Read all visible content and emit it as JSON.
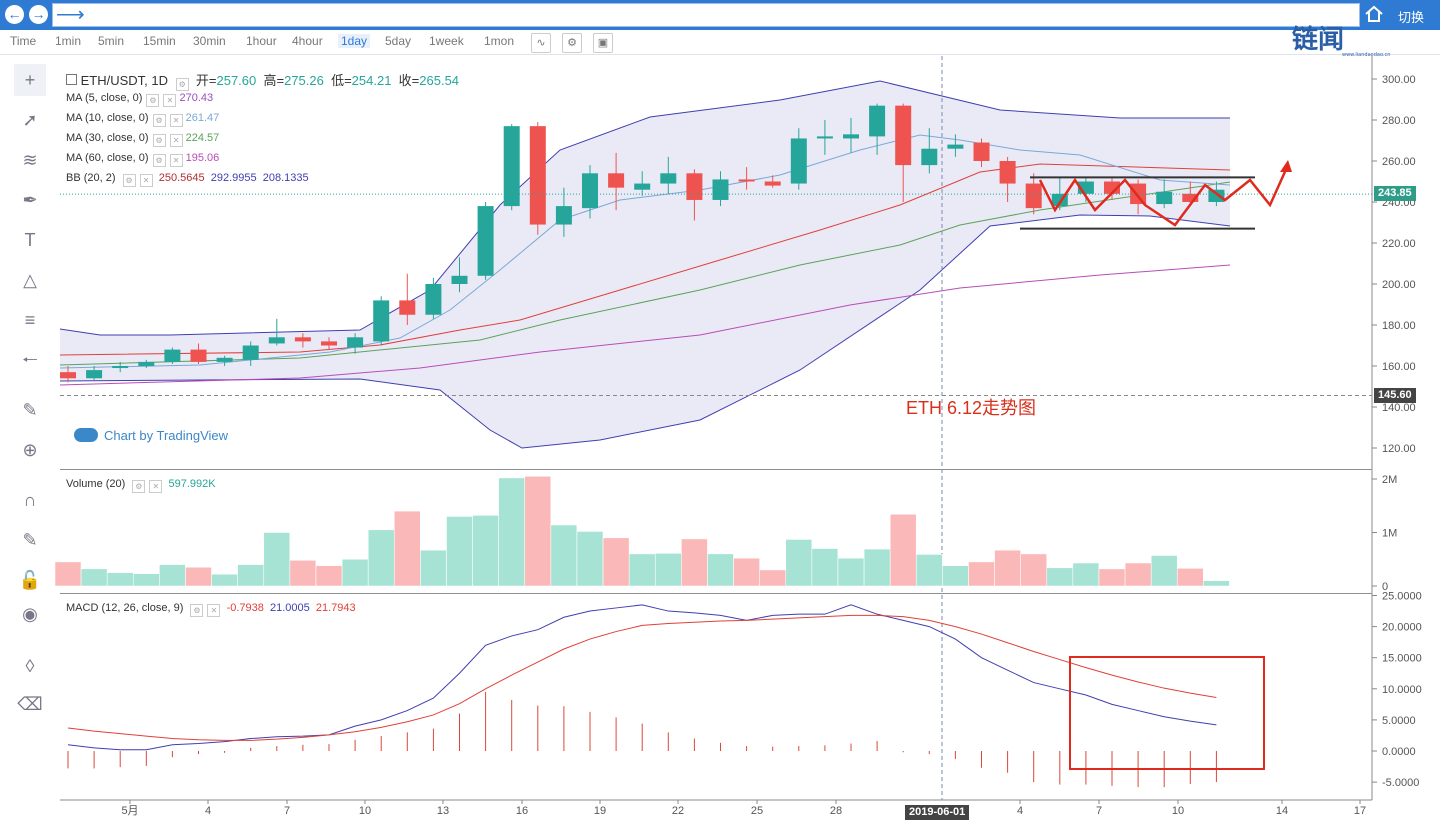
{
  "browser": {
    "back_icon": "back-arrow-icon",
    "forward_icon": "forward-arrow-icon",
    "go_icon": "go-arrow-icon",
    "home_icon": "home-icon",
    "switch_label": "切换"
  },
  "timeframes": [
    "Time",
    "1min",
    "5min",
    "15min",
    "30min",
    "1hour",
    "4hour",
    "1day",
    "5day",
    "1week",
    "1mon"
  ],
  "active_timeframe": "1day",
  "logo": {
    "text": "链闻",
    "sub": "www.liandaodao.cn"
  },
  "legend": {
    "symbol": "ETH/USDT, 1D",
    "open_label": "开=",
    "open": "257.60",
    "high_label": "高=",
    "high": "275.26",
    "low_label": "低=",
    "low": "254.21",
    "close_label": "收=",
    "close": "265.54",
    "ma": [
      {
        "label": "MA (5, close, 0)",
        "value": "270.43",
        "color": "#9b4dbf"
      },
      {
        "label": "MA (10, close, 0)",
        "value": "261.47",
        "color": "#7aa8d8"
      },
      {
        "label": "MA (30, close, 0)",
        "value": "224.57",
        "color": "#5aa35a"
      },
      {
        "label": "MA (60, close, 0)",
        "value": "195.06",
        "color": "#b84db8"
      }
    ],
    "bb": {
      "label": "BB (20, 2)",
      "v1": "250.5645",
      "v2": "292.9955",
      "v3": "208.1335"
    },
    "volume": {
      "label": "Volume (20)",
      "value": "597.992K"
    },
    "macd": {
      "label": "MACD (12, 26, close, 9)",
      "v1": "-0.7938",
      "v2": "21.0005",
      "v3": "21.7943"
    }
  },
  "watermark": "Chart by TradingView",
  "annotation": "ETH 6.12走势图",
  "price_badges": {
    "last": "243.85",
    "crosshair": "145.60"
  },
  "crosshair_date": "2019-06-01",
  "colors": {
    "up": "#26a69a",
    "down": "#ef5350",
    "bb_fill": "#d8d8ee",
    "bb_line": "#3f3fb0",
    "ma_red": "#e0403a",
    "accent": "#2f7bd3"
  },
  "chart_data": {
    "type": "candlestick",
    "xlabels": [
      "5月",
      "4",
      "7",
      "10",
      "13",
      "16",
      "19",
      "22",
      "25",
      "28",
      "2019-06-01",
      "4",
      "7",
      "10",
      "14",
      "17"
    ],
    "price_axis": {
      "ticks": [
        300.0,
        280.0,
        260.0,
        240.0,
        220.0,
        200.0,
        180.0,
        160.0,
        140.0,
        120.0
      ],
      "ylim": [
        110,
        305
      ]
    },
    "candles": [
      {
        "o": 157,
        "h": 160,
        "l": 152,
        "c": 154
      },
      {
        "o": 154,
        "h": 160,
        "l": 153,
        "c": 158
      },
      {
        "o": 159,
        "h": 162,
        "l": 157,
        "c": 160
      },
      {
        "o": 160,
        "h": 163,
        "l": 159,
        "c": 162
      },
      {
        "o": 162,
        "h": 169,
        "l": 161,
        "c": 168
      },
      {
        "o": 168,
        "h": 171,
        "l": 161,
        "c": 162
      },
      {
        "o": 162,
        "h": 165,
        "l": 160,
        "c": 164
      },
      {
        "o": 163,
        "h": 172,
        "l": 160,
        "c": 170
      },
      {
        "o": 171,
        "h": 183,
        "l": 170,
        "c": 174
      },
      {
        "o": 174,
        "h": 176,
        "l": 169,
        "c": 172
      },
      {
        "o": 172,
        "h": 174,
        "l": 168,
        "c": 170
      },
      {
        "o": 169,
        "h": 176,
        "l": 166,
        "c": 174
      },
      {
        "o": 172,
        "h": 194,
        "l": 170,
        "c": 192
      },
      {
        "o": 192,
        "h": 205,
        "l": 180,
        "c": 185
      },
      {
        "o": 185,
        "h": 203,
        "l": 183,
        "c": 200
      },
      {
        "o": 200,
        "h": 213,
        "l": 196,
        "c": 204
      },
      {
        "o": 204,
        "h": 240,
        "l": 202,
        "c": 238
      },
      {
        "o": 238,
        "h": 278,
        "l": 236,
        "c": 277
      },
      {
        "o": 277,
        "h": 279,
        "l": 224,
        "c": 229
      },
      {
        "o": 229,
        "h": 247,
        "l": 223,
        "c": 238
      },
      {
        "o": 237,
        "h": 258,
        "l": 232,
        "c": 254
      },
      {
        "o": 254,
        "h": 264,
        "l": 236,
        "c": 247
      },
      {
        "o": 246,
        "h": 255,
        "l": 243,
        "c": 249
      },
      {
        "o": 249,
        "h": 262,
        "l": 244,
        "c": 254
      },
      {
        "o": 254,
        "h": 256,
        "l": 231,
        "c": 241
      },
      {
        "o": 241,
        "h": 255,
        "l": 238,
        "c": 251
      },
      {
        "o": 251,
        "h": 257,
        "l": 246,
        "c": 250
      },
      {
        "o": 250,
        "h": 253,
        "l": 247,
        "c": 248
      },
      {
        "o": 249,
        "h": 276,
        "l": 246,
        "c": 271
      },
      {
        "o": 271,
        "h": 280,
        "l": 263,
        "c": 272
      },
      {
        "o": 271,
        "h": 281,
        "l": 264,
        "c": 273
      },
      {
        "o": 272,
        "h": 288,
        "l": 263,
        "c": 287
      },
      {
        "o": 287,
        "h": 288,
        "l": 240,
        "c": 258
      },
      {
        "o": 258,
        "h": 276,
        "l": 254,
        "c": 266
      },
      {
        "o": 266,
        "h": 273,
        "l": 262,
        "c": 268
      },
      {
        "o": 269,
        "h": 271,
        "l": 257,
        "c": 260
      },
      {
        "o": 260,
        "h": 262,
        "l": 240,
        "c": 249
      },
      {
        "o": 249,
        "h": 254,
        "l": 234,
        "c": 237
      },
      {
        "o": 238,
        "h": 252,
        "l": 236,
        "c": 244
      },
      {
        "o": 244,
        "h": 252,
        "l": 240,
        "c": 250
      },
      {
        "o": 250,
        "h": 252,
        "l": 241,
        "c": 244
      },
      {
        "o": 249,
        "h": 251,
        "l": 234,
        "c": 239
      },
      {
        "o": 239,
        "h": 251,
        "l": 237,
        "c": 245
      },
      {
        "o": 244,
        "h": 250,
        "l": 239,
        "c": 240
      },
      {
        "o": 240,
        "h": 250,
        "l": 238,
        "c": 246
      }
    ],
    "volume": {
      "ticks": [
        "2M",
        "1M",
        "0"
      ],
      "values": [
        0.45,
        0.32,
        0.25,
        0.23,
        0.4,
        0.35,
        0.22,
        0.4,
        1.0,
        0.48,
        0.38,
        0.5,
        1.05,
        1.4,
        0.67,
        1.3,
        1.32,
        2.02,
        2.05,
        1.14,
        1.02,
        0.9,
        0.6,
        0.61,
        0.88,
        0.6,
        0.52,
        0.3,
        0.87,
        0.7,
        0.52,
        0.69,
        1.34,
        0.59,
        0.38,
        0.45,
        0.67,
        0.6,
        0.34,
        0.43,
        0.32,
        0.43,
        0.57,
        0.33,
        0.1
      ]
    },
    "macd": {
      "ticks": [
        "25.0000",
        "20.0000",
        "15.0000",
        "10.0000",
        "5.0000",
        "0.0000",
        "-5.0000"
      ]
    }
  }
}
